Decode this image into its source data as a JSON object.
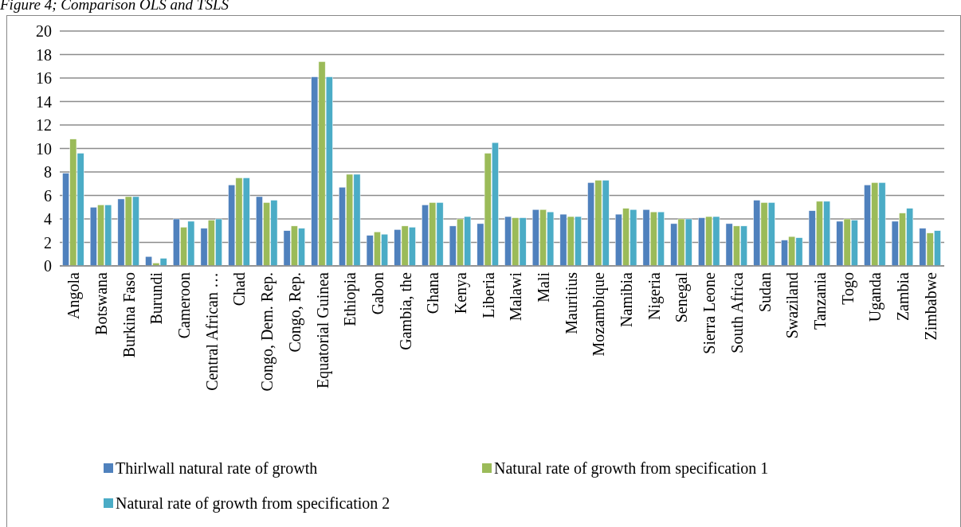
{
  "chart_data": {
    "type": "bar",
    "title": "Figure 4; Comparison OLS and TSLS",
    "categories": [
      "Angola",
      "Botswana",
      "Burkina Faso",
      "Burundi",
      "Cameroon",
      "Central African …",
      "Chad",
      "Congo, Dem. Rep.",
      "Congo, Rep.",
      "Equatorial Guinea",
      "Ethiopia",
      "Gabon",
      "Gambia, the",
      "Ghana",
      "Kenya",
      "Liberia",
      "Malawi",
      "Mali",
      "Mauritius",
      "Mozambique",
      "Namibia",
      "Nigeria",
      "Senegal",
      "Sierra Leone",
      "South Africa",
      "Sudan",
      "Swaziland",
      "Tanzania",
      "Togo",
      "Uganda",
      "Zambia",
      "Zimbabwe"
    ],
    "series": [
      {
        "name": "Thirlwall natural rate of growth",
        "color": "#4f81bd",
        "values": [
          7.9,
          5.0,
          5.7,
          0.8,
          4.0,
          3.2,
          6.9,
          5.9,
          3.0,
          16.1,
          6.7,
          2.6,
          3.1,
          5.2,
          3.4,
          3.6,
          4.2,
          4.8,
          4.4,
          7.1,
          4.4,
          4.8,
          3.6,
          4.1,
          3.6,
          5.6,
          2.2,
          4.7,
          3.8,
          6.9,
          3.8,
          3.2
        ]
      },
      {
        "name": "Natural rate of growth from specification 1",
        "color": "#9bbb59",
        "values": [
          10.8,
          5.2,
          5.9,
          0.25,
          3.3,
          3.9,
          7.5,
          5.4,
          3.4,
          17.4,
          7.8,
          2.9,
          3.4,
          5.4,
          4.0,
          9.6,
          4.1,
          4.8,
          4.2,
          7.3,
          4.9,
          4.6,
          4.0,
          4.2,
          3.4,
          5.4,
          2.5,
          5.5,
          4.0,
          7.1,
          4.5,
          2.8
        ]
      },
      {
        "name": "Natural rate of growth from specification 2",
        "color": "#4bacc6",
        "values": [
          9.6,
          5.2,
          5.9,
          0.65,
          3.8,
          4.0,
          7.5,
          5.6,
          3.2,
          16.1,
          7.8,
          2.7,
          3.3,
          5.4,
          4.2,
          10.5,
          4.1,
          4.6,
          4.2,
          7.3,
          4.8,
          4.6,
          4.0,
          4.2,
          3.4,
          5.4,
          2.4,
          5.5,
          3.9,
          7.1,
          4.9,
          3.0
        ]
      }
    ],
    "ylim": [
      0,
      20
    ],
    "yticks": [
      0,
      2,
      4,
      6,
      8,
      10,
      12,
      14,
      16,
      18,
      20
    ],
    "grid": "y",
    "legend": "bottom"
  }
}
